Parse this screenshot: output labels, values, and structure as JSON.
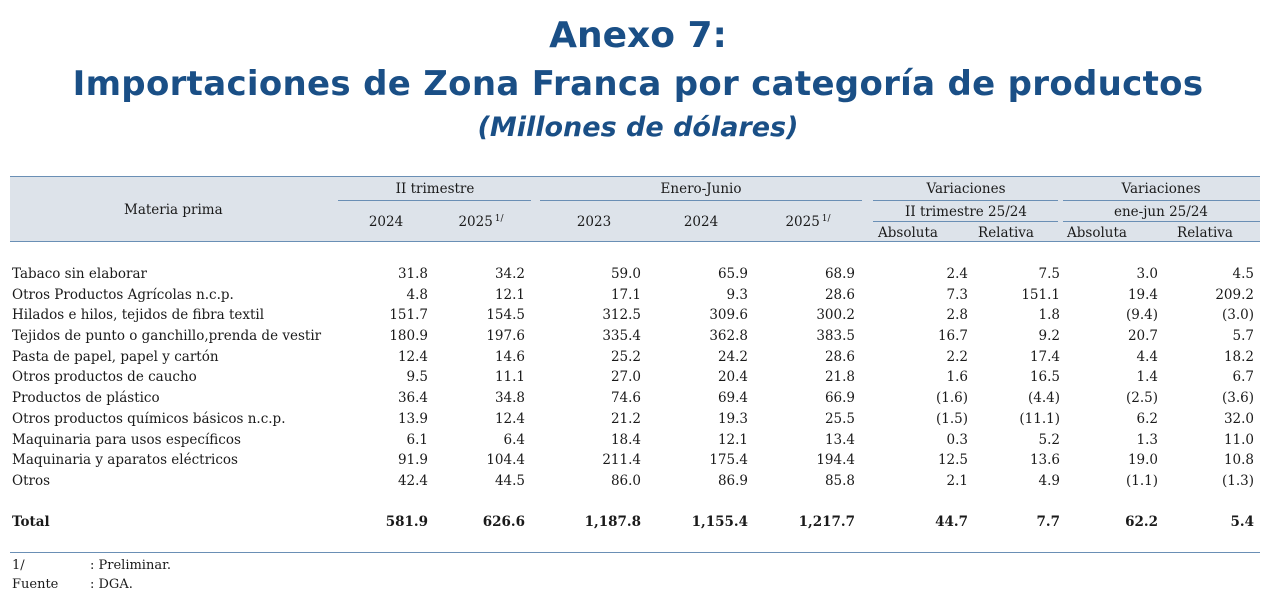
{
  "title": {
    "line1": "Anexo 7:",
    "line2": "Importaciones de Zona Franca por categoría de productos",
    "line3": "(Millones de dólares)"
  },
  "header": {
    "rowlabel": "Materia prima",
    "group1": "II trimestre",
    "group2": "Enero-Junio",
    "group3": "Variaciones",
    "group3_sub": "II trimestre 25/24",
    "group4": "Variaciones",
    "group4_sub": "ene-jun 25/24",
    "cols": [
      "2024",
      "2025",
      "2023",
      "2024",
      "2025",
      "Absoluta",
      "Relativa",
      "Absoluta",
      "Relativa"
    ],
    "note_mark": "1/"
  },
  "rows": [
    {
      "label": "Tabaco sin elaborar",
      "values": [
        "31.8",
        "34.2",
        "59.0",
        "65.9",
        "68.9",
        "2.4",
        "7.5",
        "3.0",
        "4.5"
      ]
    },
    {
      "label": "Otros Productos Agrícolas n.c.p.",
      "values": [
        "4.8",
        "12.1",
        "17.1",
        "9.3",
        "28.6",
        "7.3",
        "151.1",
        "19.4",
        "209.2"
      ]
    },
    {
      "label": "Hilados e hilos, tejidos de fibra textil",
      "values": [
        "151.7",
        "154.5",
        "312.5",
        "309.6",
        "300.2",
        "2.8",
        "1.8",
        "(9.4)",
        "(3.0)"
      ]
    },
    {
      "label": "Tejidos de punto o ganchillo,prenda de vestir",
      "values": [
        "180.9",
        "197.6",
        "335.4",
        "362.8",
        "383.5",
        "16.7",
        "9.2",
        "20.7",
        "5.7"
      ]
    },
    {
      "label": "Pasta de papel, papel y cartón",
      "values": [
        "12.4",
        "14.6",
        "25.2",
        "24.2",
        "28.6",
        "2.2",
        "17.4",
        "4.4",
        "18.2"
      ]
    },
    {
      "label": "Otros productos de caucho",
      "values": [
        "9.5",
        "11.1",
        "27.0",
        "20.4",
        "21.8",
        "1.6",
        "16.5",
        "1.4",
        "6.7"
      ]
    },
    {
      "label": "Productos de plástico",
      "values": [
        "36.4",
        "34.8",
        "74.6",
        "69.4",
        "66.9",
        "(1.6)",
        "(4.4)",
        "(2.5)",
        "(3.6)"
      ]
    },
    {
      "label": "Otros productos químicos básicos n.c.p.",
      "values": [
        "13.9",
        "12.4",
        "21.2",
        "19.3",
        "25.5",
        "(1.5)",
        "(11.1)",
        "6.2",
        "32.0"
      ]
    },
    {
      "label": "Maquinaria para usos específicos",
      "values": [
        "6.1",
        "6.4",
        "18.4",
        "12.1",
        "13.4",
        "0.3",
        "5.2",
        "1.3",
        "11.0"
      ]
    },
    {
      "label": "Maquinaria y aparatos eléctricos",
      "values": [
        "91.9",
        "104.4",
        "211.4",
        "175.4",
        "194.4",
        "12.5",
        "13.6",
        "19.0",
        "10.8"
      ]
    },
    {
      "label": "Otros",
      "values": [
        "42.4",
        "44.5",
        "86.0",
        "86.9",
        "85.8",
        "2.1",
        "4.9",
        "(1.1)",
        "(1.3)"
      ]
    }
  ],
  "total": {
    "label": "Total",
    "values": [
      "581.9",
      "626.6",
      "1,187.8",
      "1,155.4",
      "1,217.7",
      "44.7",
      "7.7",
      "62.2",
      "5.4"
    ]
  },
  "notes": [
    {
      "key": "1/",
      "text": ": Preliminar."
    },
    {
      "key": "Fuente",
      "text": ": DGA."
    }
  ]
}
